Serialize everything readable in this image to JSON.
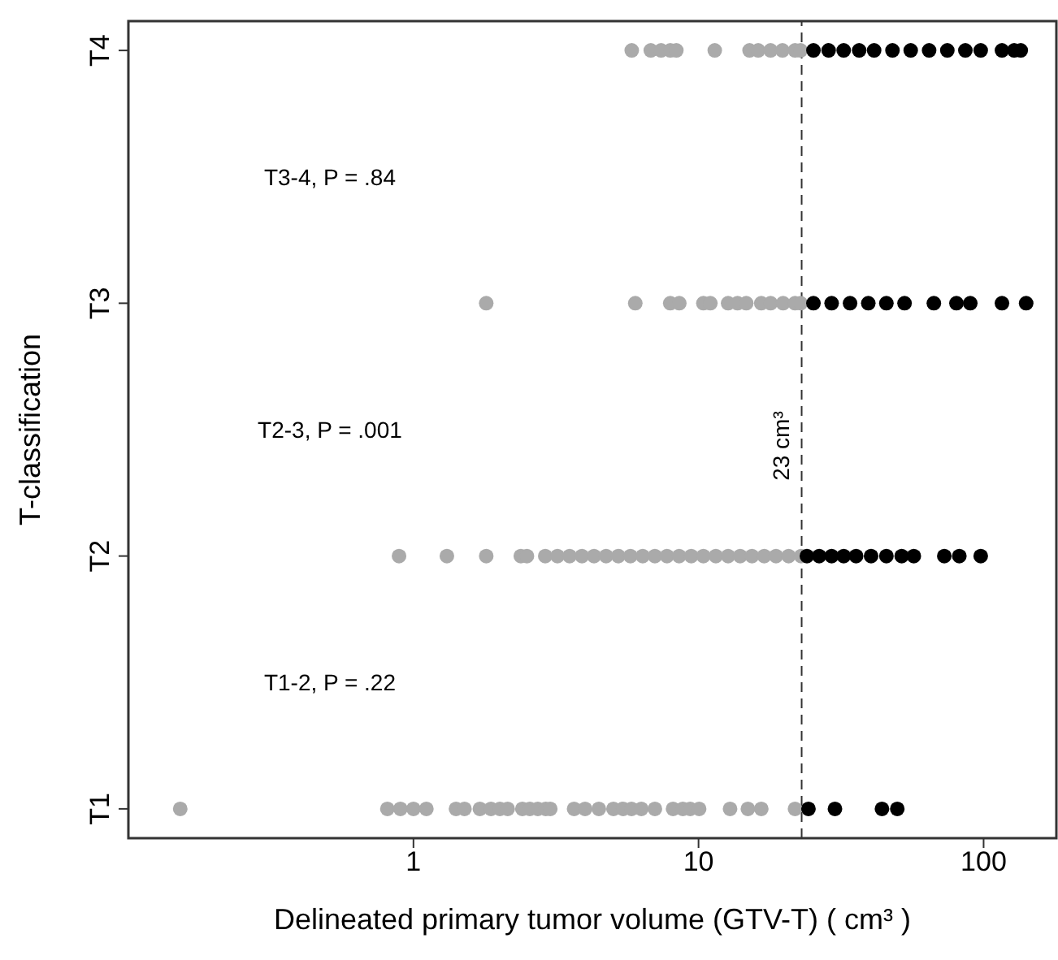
{
  "chart_data": {
    "type": "scatter",
    "orientation": "horizontal",
    "xlabel": "Delineated primary tumor volume (GTV-T) ( cm³ )",
    "ylabel": "T-classification",
    "log": "x",
    "marker": "circle",
    "xlim": [
      0.1,
      180
    ],
    "xticks": [
      1,
      10,
      100
    ],
    "categories": [
      "T4",
      "T3",
      "T2",
      "T1"
    ],
    "ref_lines": [
      {
        "axis": "x",
        "value": 23,
        "label": "23 cm³",
        "line_style": "dashed",
        "color": "#333333"
      }
    ],
    "annotations": [
      "T3-4, P = .84",
      "T2-3, P = .001",
      "T1-2, P = .22"
    ],
    "series": [
      {
        "color": "#aaaaaa",
        "values": [
          0.152,
          0.81,
          0.9,
          1.0,
          1.11,
          1.41,
          1.51,
          1.71,
          1.87,
          2.01,
          2.14,
          2.41,
          2.56,
          2.73,
          2.91,
          3.02,
          3.66,
          4.0,
          4.47,
          5.03,
          5.44,
          5.82,
          6.3,
          7.03,
          8.14,
          8.81,
          9.35,
          10.05,
          12.9,
          14.9,
          16.6,
          21.8,
          0.89,
          1.31,
          1.8,
          2.38,
          2.5,
          2.9,
          3.2,
          3.53,
          3.9,
          4.3,
          4.74,
          5.23,
          5.77,
          6.37,
          7.03,
          7.75,
          8.55,
          9.43,
          10.4,
          11.5,
          12.7,
          14.0,
          15.4,
          17.0,
          18.7,
          20.7,
          22.9,
          1.8,
          6.0,
          7.96,
          8.56,
          10.4,
          11.0,
          12.7,
          13.7,
          14.7,
          16.6,
          17.9,
          19.8,
          21.8,
          22.8,
          5.83,
          6.8,
          7.39,
          7.96,
          8.36,
          11.4,
          15.1,
          16.2,
          17.9,
          19.7,
          21.8,
          22.8
        ],
        "x": [
          "T1",
          "T1",
          "T1",
          "T1",
          "T1",
          "T1",
          "T1",
          "T1",
          "T1",
          "T1",
          "T1",
          "T1",
          "T1",
          "T1",
          "T1",
          "T1",
          "T1",
          "T1",
          "T1",
          "T1",
          "T1",
          "T1",
          "T1",
          "T1",
          "T1",
          "T1",
          "T1",
          "T1",
          "T1",
          "T1",
          "T1",
          "T1",
          "T2",
          "T2",
          "T2",
          "T2",
          "T2",
          "T2",
          "T2",
          "T2",
          "T2",
          "T2",
          "T2",
          "T2",
          "T2",
          "T2",
          "T2",
          "T2",
          "T2",
          "T2",
          "T2",
          "T2",
          "T2",
          "T2",
          "T2",
          "T2",
          "T2",
          "T2",
          "T2",
          "T3",
          "T3",
          "T3",
          "T3",
          "T3",
          "T3",
          "T3",
          "T3",
          "T3",
          "T3",
          "T3",
          "T3",
          "T3",
          "T3",
          "T4",
          "T4",
          "T4",
          "T4",
          "T4",
          "T4",
          "T4",
          "T4",
          "T4",
          "T4",
          "T4",
          "T4"
        ]
      },
      {
        "color": "#000000",
        "values": [
          24.3,
          30.1,
          44.0,
          49.8,
          24.0,
          26.5,
          29.3,
          32.3,
          35.7,
          40.3,
          45.6,
          51.6,
          56.9,
          72.8,
          82.2,
          97.7,
          25.3,
          29.3,
          34.0,
          39.4,
          45.6,
          52.8,
          66.9,
          80.3,
          89.8,
          116,
          141,
          25.3,
          28.6,
          32.3,
          36.6,
          41.3,
          47.9,
          55.5,
          64.4,
          74.6,
          86.3,
          97.7,
          116,
          128,
          135
        ],
        "x": [
          "T1",
          "T1",
          "T1",
          "T1",
          "T2",
          "T2",
          "T2",
          "T2",
          "T2",
          "T2",
          "T2",
          "T2",
          "T2",
          "T2",
          "T2",
          "T2",
          "T3",
          "T3",
          "T3",
          "T3",
          "T3",
          "T3",
          "T3",
          "T3",
          "T3",
          "T3",
          "T3",
          "T4",
          "T4",
          "T4",
          "T4",
          "T4",
          "T4",
          "T4",
          "T4",
          "T4",
          "T4",
          "T4",
          "T4",
          "T4",
          "T4"
        ]
      }
    ]
  }
}
